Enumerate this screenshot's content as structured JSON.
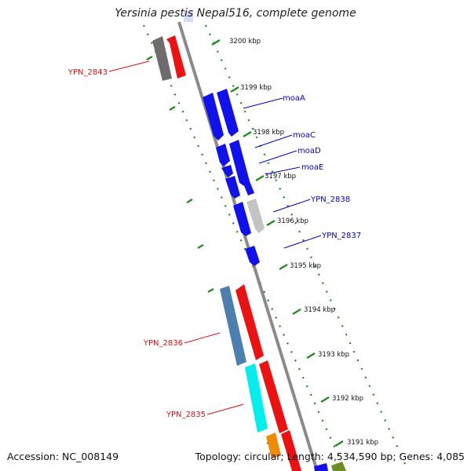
{
  "title": "Yersinia pestis Nepal516, complete genome",
  "footer": {
    "accession": "Accession: NC_008149",
    "topology": "Topology: circular; Length: 4,534,590 bp; Genes: 4,085"
  },
  "colors": {
    "backbone": "#8a8a8a",
    "tick_ring": "#1a8a1a",
    "forward_label": "#0000cc",
    "reverse_label": "#dd1111"
  },
  "scale_ticks": [
    {
      "label": "3200 kbp"
    },
    {
      "label": "3199 kbp"
    },
    {
      "label": "3198 kbp"
    },
    {
      "label": "3197 kbp"
    },
    {
      "label": "3196 kbp"
    },
    {
      "label": "3195 kbp"
    },
    {
      "label": "3194 kbp"
    },
    {
      "label": "3193 kbp"
    },
    {
      "label": "3192 kbp"
    },
    {
      "label": "3191 kbp"
    }
  ],
  "gene_labels_right": [
    {
      "text": "moaA"
    },
    {
      "text": "moaC"
    },
    {
      "text": "moaD"
    },
    {
      "text": "moaE"
    },
    {
      "text": "YPN_2838"
    },
    {
      "text": "YPN_2837"
    }
  ],
  "gene_labels_left": [
    {
      "text": "YPN_2843"
    },
    {
      "text": "YPN_2836"
    },
    {
      "text": "YPN_2835"
    }
  ]
}
